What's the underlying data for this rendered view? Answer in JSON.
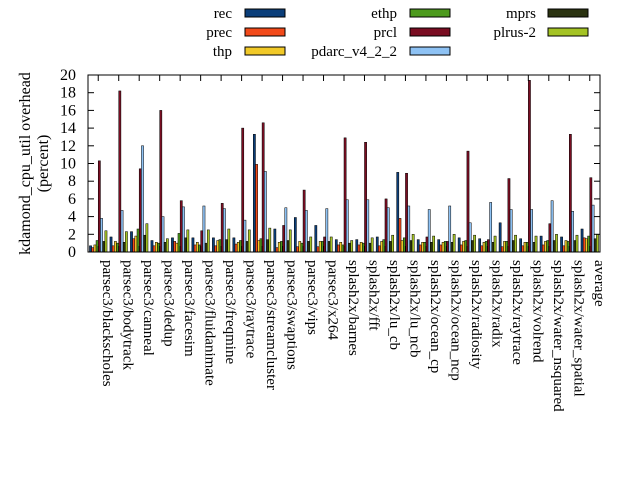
{
  "chart_data": {
    "type": "bar",
    "title": "",
    "xlabel": "",
    "ylabel": [
      "kdamond_cpu_util overhead",
      "(percent)"
    ],
    "ylim": [
      0,
      20
    ],
    "yticks": [
      0,
      2,
      4,
      6,
      8,
      10,
      12,
      14,
      16,
      18,
      20
    ],
    "grid": false,
    "legend_position": "top",
    "categories": [
      "parsec3/blackscholes",
      "parsec3/bodytrack",
      "parsec3/canneal",
      "parsec3/dedup",
      "parsec3/facesim",
      "parsec3/fluidanimate",
      "parsec3/freqmine",
      "parsec3/raytrace",
      "parsec3/streamcluster",
      "parsec3/swaptions",
      "parsec3/vips",
      "parsec3/x264",
      "splash2x/barnes",
      "splash2x/fft",
      "splash2x/lu_cb",
      "splash2x/lu_ncb",
      "splash2x/ocean_cp",
      "splash2x/ocean_ncp",
      "splash2x/radiosity",
      "splash2x/radix",
      "splash2x/raytrace",
      "splash2x/volrend",
      "splash2x/water_nsquared",
      "splash2x/water_spatial",
      "average"
    ],
    "series": [
      {
        "name": "rec",
        "color": "#0b3e79",
        "values": [
          0.7,
          1.7,
          2.3,
          1.3,
          1.6,
          1.6,
          1.6,
          1.6,
          13.3,
          2.6,
          3.9,
          3.0,
          1.4,
          1.4,
          1.7,
          9.0,
          1.4,
          1.4,
          1.6,
          1.5,
          3.3,
          1.5,
          1.8,
          1.7,
          2.6
        ]
      },
      {
        "name": "prec",
        "color": "#f24a1a",
        "values": [
          0.5,
          0.7,
          1.5,
          0.7,
          1.2,
          0.8,
          0.7,
          0.9,
          9.9,
          0.5,
          0.6,
          0.6,
          0.8,
          0.8,
          0.7,
          3.8,
          0.8,
          0.8,
          0.8,
          0.7,
          0.6,
          0.7,
          0.8,
          0.7,
          1.6
        ]
      },
      {
        "name": "thp",
        "color": "#f1c928",
        "values": [
          0.8,
          1.2,
          1.8,
          1.1,
          1.0,
          1.1,
          1.3,
          1.1,
          1.3,
          1.1,
          1.2,
          1.2,
          1.1,
          1.1,
          1.2,
          1.3,
          1.1,
          1.1,
          1.2,
          1.1,
          1.2,
          1.1,
          1.2,
          1.3,
          1.5
        ]
      },
      {
        "name": "ethp",
        "color": "#4c9a1d",
        "values": [
          1.3,
          1.0,
          2.6,
          1.0,
          2.1,
          0.8,
          1.4,
          1.3,
          1.5,
          1.2,
          1.0,
          1.2,
          0.8,
          1.0,
          1.4,
          1.6,
          1.1,
          1.2,
          1.3,
          1.2,
          1.2,
          1.1,
          1.3,
          1.2,
          1.8
        ]
      },
      {
        "name": "prcl",
        "color": "#7a0d22",
        "values": [
          10.3,
          18.2,
          9.4,
          16.0,
          5.8,
          2.4,
          5.5,
          14.0,
          14.6,
          3.0,
          7.0,
          1.7,
          12.9,
          12.4,
          6.0,
          8.9,
          1.7,
          1.2,
          11.4,
          1.4,
          8.3,
          19.4,
          3.2,
          13.3,
          8.4
        ]
      },
      {
        "name": "pdarc_v4_2_2",
        "color": "#8ec2f4",
        "values": [
          3.8,
          4.7,
          12.0,
          4.0,
          5.1,
          5.2,
          4.9,
          3.6,
          9.1,
          5.0,
          4.7,
          4.9,
          5.9,
          5.9,
          5.0,
          5.2,
          4.8,
          5.2,
          3.3,
          5.6,
          4.8,
          4.8,
          5.8,
          4.6,
          5.3
        ]
      },
      {
        "name": "mprs",
        "color": "#2b3311",
        "values": [
          1.2,
          1.1,
          1.9,
          1.1,
          1.6,
          1.0,
          1.4,
          1.2,
          1.4,
          1.3,
          1.2,
          1.2,
          1.0,
          1.0,
          1.2,
          1.3,
          1.1,
          1.1,
          1.3,
          1.1,
          1.3,
          1.1,
          1.3,
          1.3,
          1.5
        ]
      },
      {
        "name": "plrus-2",
        "color": "#a4c324",
        "values": [
          2.4,
          2.3,
          3.2,
          1.5,
          2.5,
          2.5,
          2.6,
          2.5,
          2.7,
          2.5,
          1.7,
          1.7,
          1.3,
          1.6,
          1.9,
          2.0,
          1.8,
          2.0,
          1.9,
          1.8,
          1.9,
          1.8,
          2.0,
          1.9,
          2.0
        ]
      }
    ]
  }
}
